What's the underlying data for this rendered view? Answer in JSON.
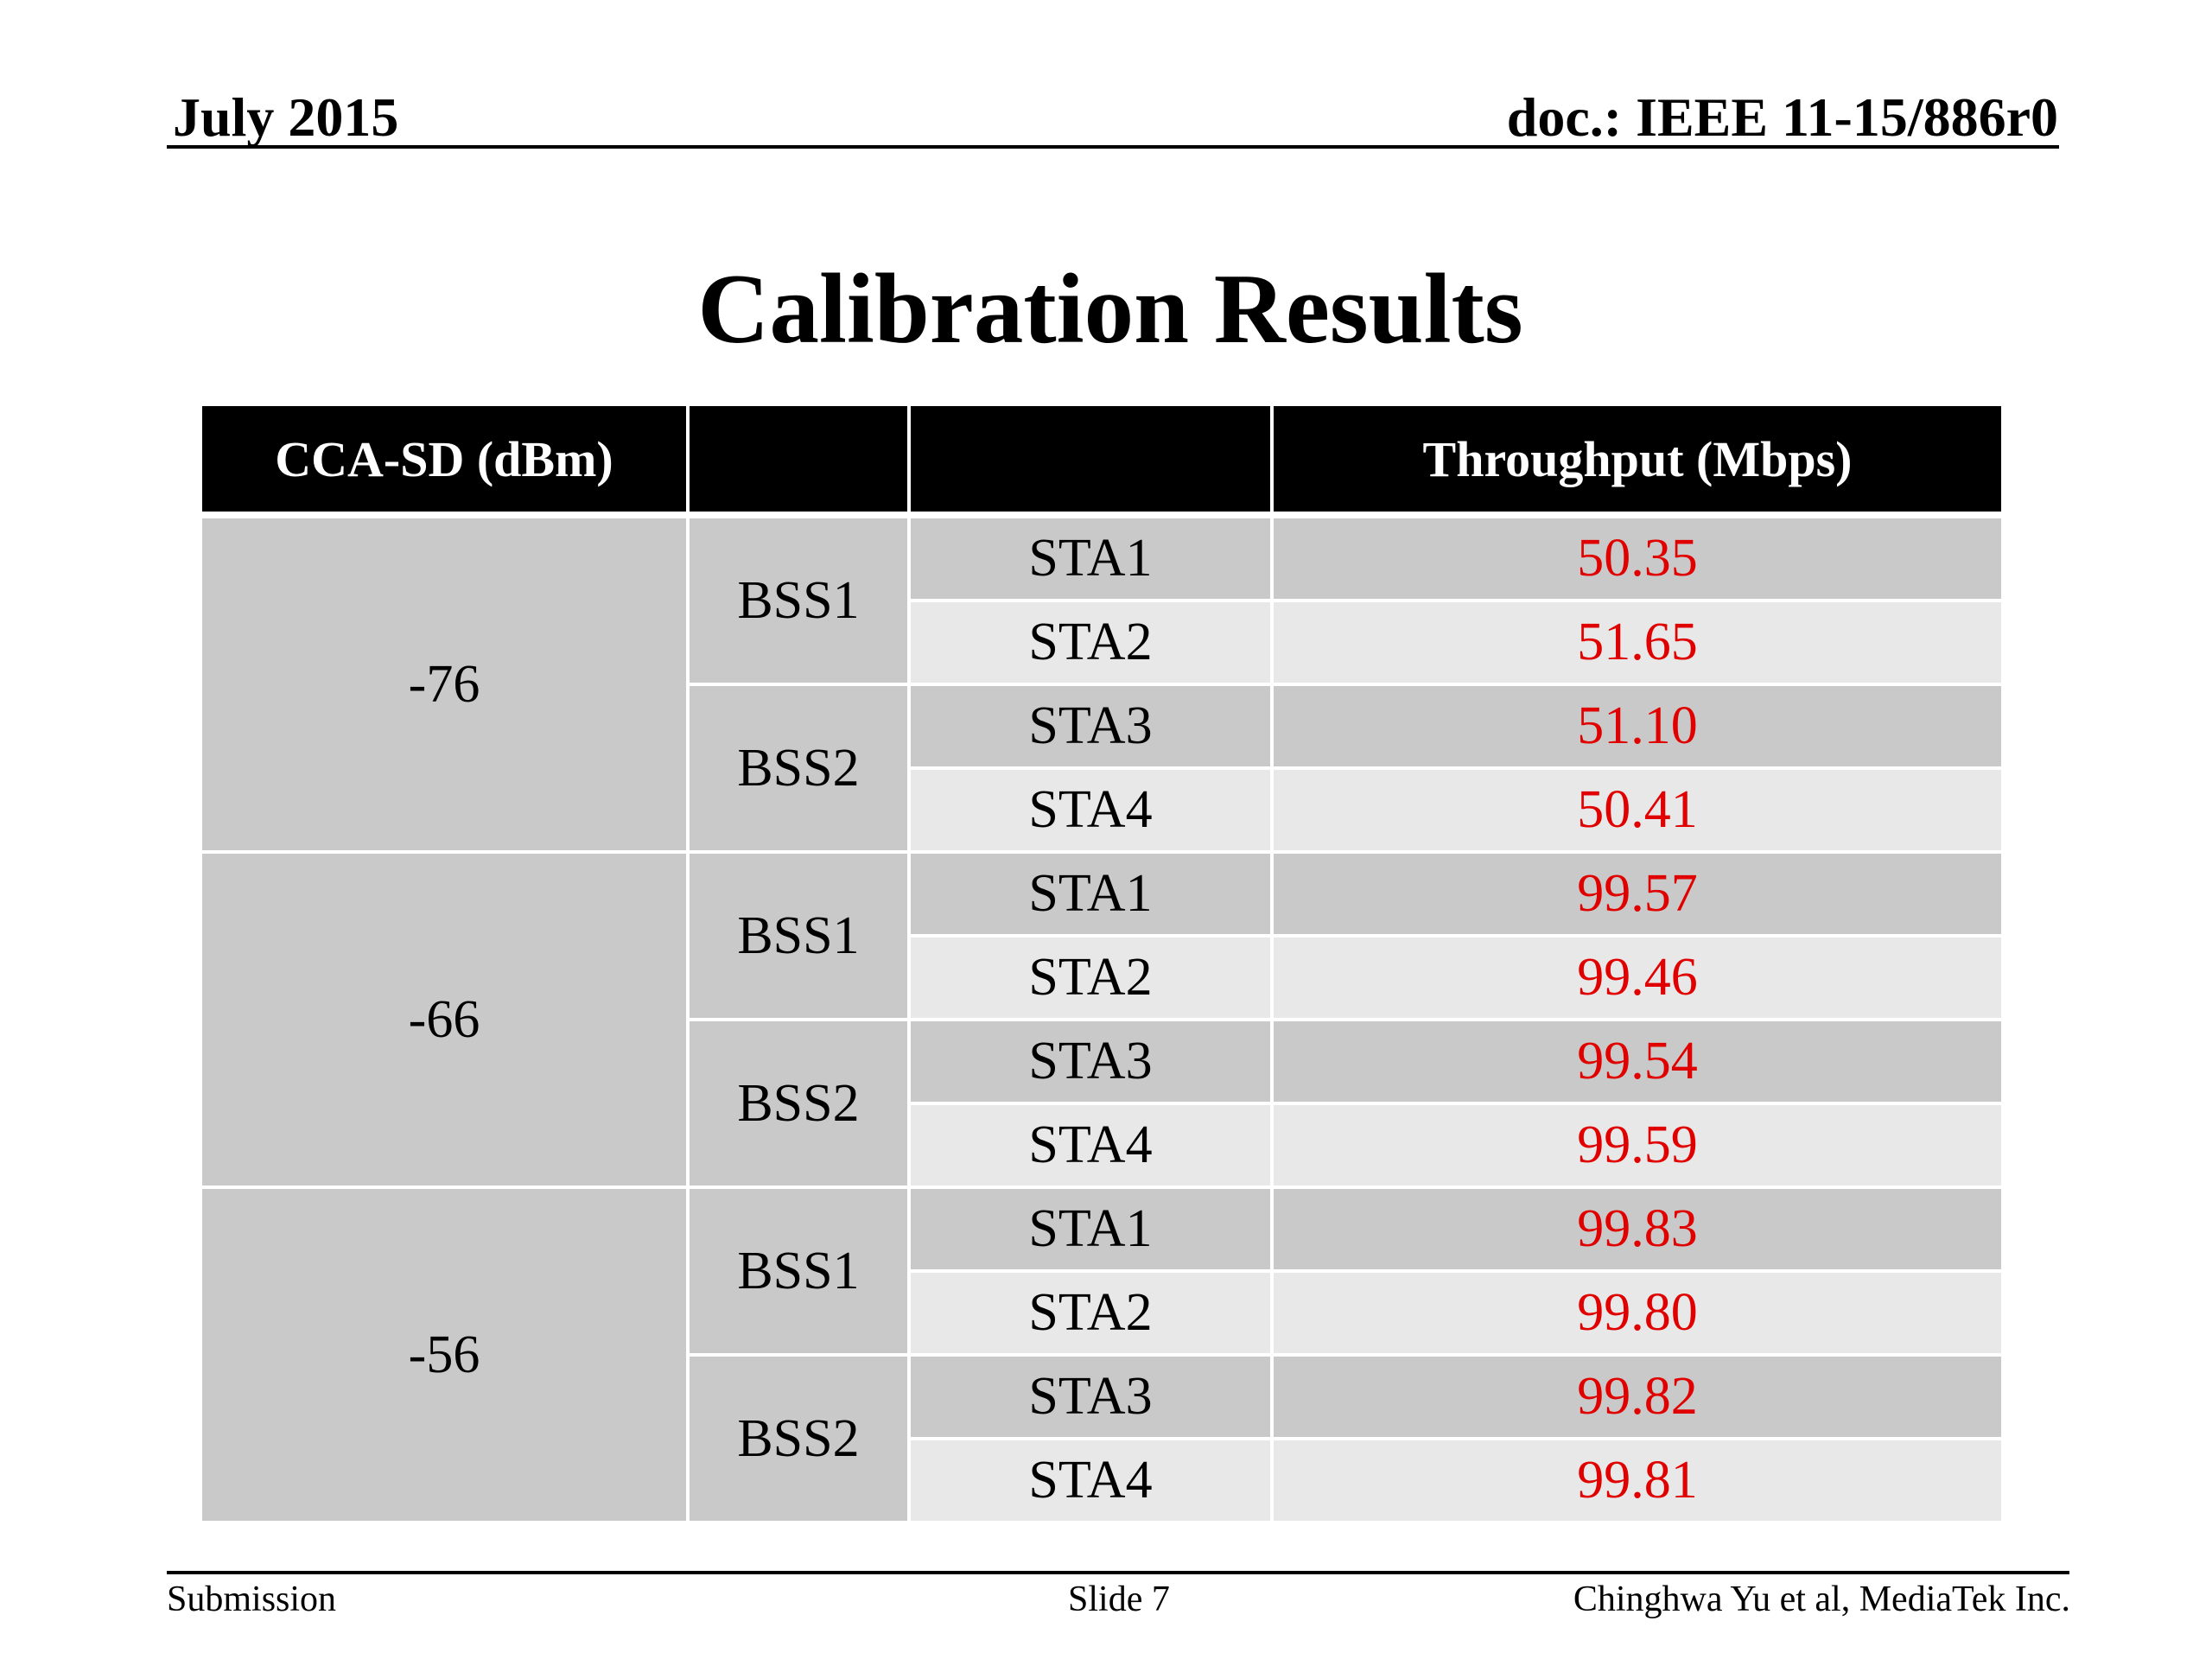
{
  "header": {
    "date": "July 2015",
    "doc": "doc.: IEEE 11-15/886r0"
  },
  "title": "Calibration Results",
  "table": {
    "headers": [
      "CCA-SD (dBm)",
      "",
      "",
      "Throughput (Mbps)"
    ],
    "groups": [
      {
        "cca": "-76",
        "bss": [
          {
            "label": "BSS1",
            "stas": [
              {
                "sta": "STA1",
                "value": "50.35"
              },
              {
                "sta": "STA2",
                "value": "51.65"
              }
            ]
          },
          {
            "label": "BSS2",
            "stas": [
              {
                "sta": "STA3",
                "value": "51.10"
              },
              {
                "sta": "STA4",
                "value": "50.41"
              }
            ]
          }
        ]
      },
      {
        "cca": "-66",
        "bss": [
          {
            "label": "BSS1",
            "stas": [
              {
                "sta": "STA1",
                "value": "99.57"
              },
              {
                "sta": "STA2",
                "value": "99.46"
              }
            ]
          },
          {
            "label": "BSS2",
            "stas": [
              {
                "sta": "STA3",
                "value": "99.54"
              },
              {
                "sta": "STA4",
                "value": "99.59"
              }
            ]
          }
        ]
      },
      {
        "cca": "-56",
        "bss": [
          {
            "label": "BSS1",
            "stas": [
              {
                "sta": "STA1",
                "value": "99.83"
              },
              {
                "sta": "STA2",
                "value": "99.80"
              }
            ]
          },
          {
            "label": "BSS2",
            "stas": [
              {
                "sta": "STA3",
                "value": "99.82"
              },
              {
                "sta": "STA4",
                "value": "99.81"
              }
            ]
          }
        ]
      }
    ]
  },
  "footer": {
    "left": "Submission",
    "center": "Slide 7",
    "right": "Chinghwa Yu et al, MediaTek Inc."
  },
  "colors": {
    "header_bg": "#000000",
    "cell_dark": "#c9c9c9",
    "cell_light": "#e8e8e8",
    "value_text": "#e00000"
  }
}
